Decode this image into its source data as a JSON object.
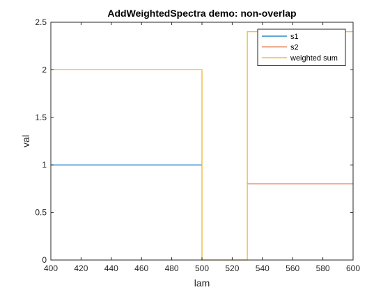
{
  "chart_data": {
    "type": "line",
    "title": "AddWeightedSpectra demo: non-overlap",
    "xlabel": "lam",
    "ylabel": "val",
    "xlim": [
      400,
      600
    ],
    "ylim": [
      0,
      2.5
    ],
    "xticks": [
      400,
      420,
      440,
      460,
      480,
      500,
      520,
      540,
      560,
      580,
      600
    ],
    "yticks": [
      0,
      0.5,
      1,
      1.5,
      2,
      2.5
    ],
    "xtick_labels": [
      "400",
      "420",
      "440",
      "460",
      "480",
      "500",
      "520",
      "540",
      "560",
      "580",
      "600"
    ],
    "ytick_labels": [
      "0",
      "0.5",
      "1",
      "1.5",
      "2",
      "2.5"
    ],
    "grid": false,
    "legend_position": "top-right",
    "series": [
      {
        "name": "s1",
        "color": "#0072BD",
        "x": [
          400,
          500
        ],
        "y": [
          1,
          1
        ]
      },
      {
        "name": "s2",
        "color": "#D95319",
        "x": [
          530,
          600
        ],
        "y": [
          0.8,
          0.8
        ]
      },
      {
        "name": "weighted sum",
        "color": "#EDB120",
        "x": [
          400,
          500,
          500,
          530,
          530,
          600
        ],
        "y": [
          2,
          2,
          0,
          0,
          2.4,
          2.4
        ]
      }
    ]
  }
}
